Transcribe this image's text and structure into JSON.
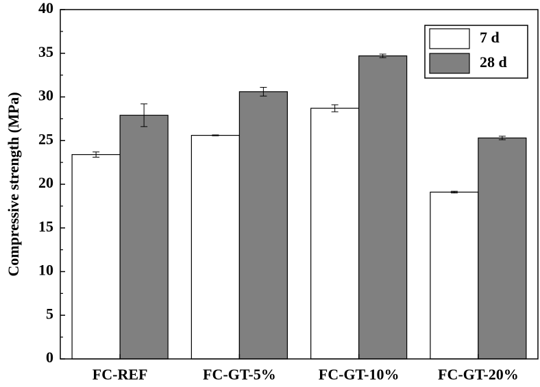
{
  "chart_data": {
    "type": "bar",
    "title": "",
    "xlabel": "",
    "ylabel": "Compressive strength (MPa)",
    "ylim": [
      0,
      40
    ],
    "yticks": [
      0,
      5,
      10,
      15,
      20,
      25,
      30,
      35,
      40
    ],
    "categories": [
      "FC-REF",
      "FC-GT-5%",
      "FC-GT-10%",
      "FC-GT-20%"
    ],
    "series": [
      {
        "name": "7 d",
        "color": "#ffffff",
        "values": [
          23.4,
          25.6,
          28.7,
          19.1
        ],
        "errors": [
          0.3,
          0.05,
          0.4,
          0.1
        ]
      },
      {
        "name": "28 d",
        "color": "#808080",
        "values": [
          27.9,
          30.6,
          34.7,
          25.3
        ],
        "errors": [
          1.3,
          0.5,
          0.2,
          0.2
        ]
      }
    ],
    "legend": "top-right",
    "grid": false
  }
}
